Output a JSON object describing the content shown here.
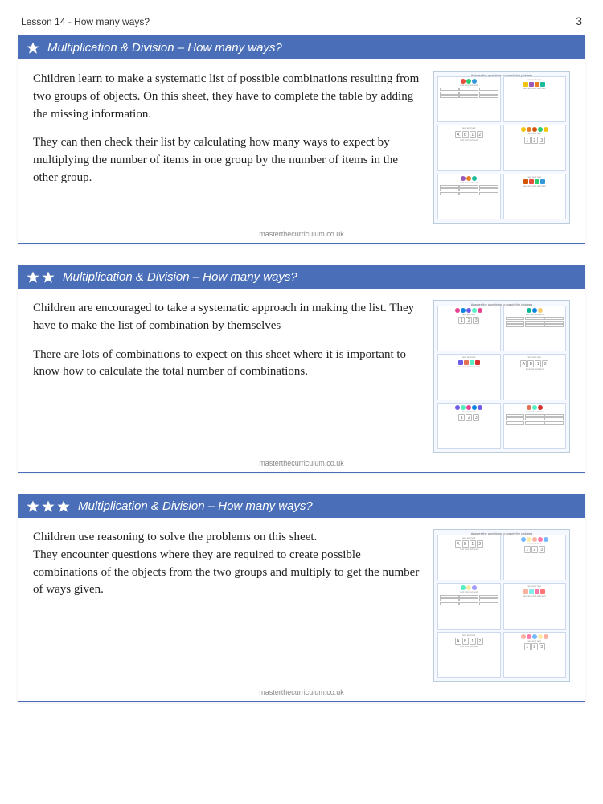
{
  "page": {
    "lesson_title": "Lesson 14 - How many ways?",
    "page_number": "3",
    "footer": "masterthecurriculum.co.uk"
  },
  "cards": [
    {
      "stars": 1,
      "title": "Multiplication & Division – How many ways?",
      "paragraphs": [
        "Children learn to make a systematic list of possible combinations resulting from two groups of objects. On this sheet, they have to complete the table by adding the missing information.",
        "They can then check their list by calculating how many ways to expect by multiplying the number of items in one group by the number of items in the other group."
      ],
      "thumb": {
        "cells": 6,
        "header": "Answer the questions to match the pictures",
        "palette": [
          "#e74c3c",
          "#2ecc71",
          "#3498db",
          "#f1c40f",
          "#9b59b6",
          "#e67e22",
          "#1abc9c",
          "#d35400"
        ]
      }
    },
    {
      "stars": 2,
      "title": "Multiplication & Division – How many ways?",
      "paragraphs": [
        "Children are encouraged to take a systematic approach in making the list. They have to make the list of combination by themselves",
        "There are lots of combinations to expect on this sheet where it is important to know how to calculate the total number of combinations."
      ],
      "thumb": {
        "cells": 6,
        "header": "Answer the questions to match the pictures",
        "palette": [
          "#e84393",
          "#00b894",
          "#0984e3",
          "#fdcb6e",
          "#6c5ce7",
          "#e17055",
          "#55efc4",
          "#d63031"
        ]
      }
    },
    {
      "stars": 3,
      "title": "Multiplication & Division – How many ways?",
      "paragraphs": [
        "Children use reasoning to solve the problems on this sheet.\nThey encounter questions where they are required to create possible combinations of the objects from the two groups and multiply to get the number of ways given."
      ],
      "thumb": {
        "cells": 6,
        "header": "Answer the questions to match the pictures",
        "palette": [
          "#ff7675",
          "#74b9ff",
          "#55efc4",
          "#ffeaa7",
          "#a29bfe",
          "#fab1a0",
          "#81ecec",
          "#fd79a8"
        ]
      }
    }
  ],
  "colors": {
    "header_bg": "#4a6fb8",
    "border": "#4a6fb8",
    "text": "#222222"
  }
}
